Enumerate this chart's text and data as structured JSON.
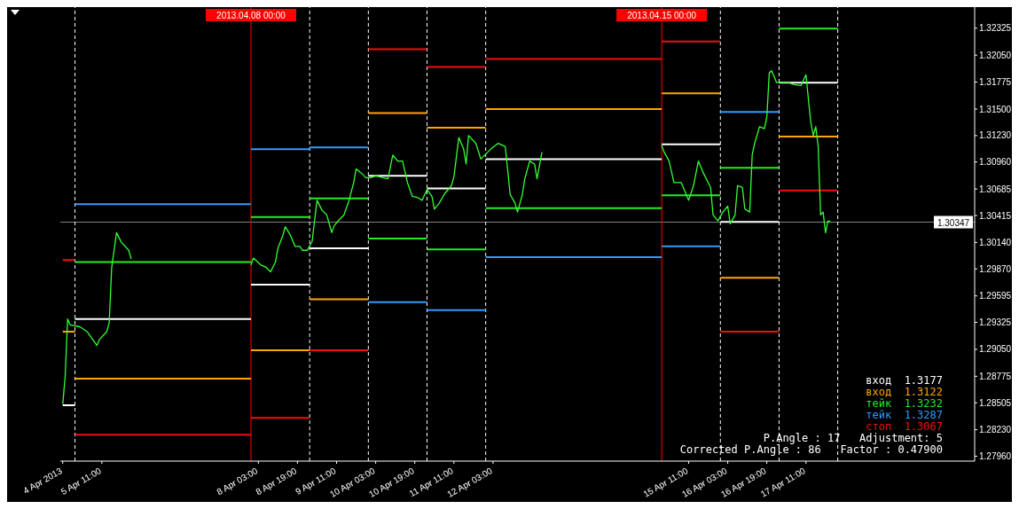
{
  "chart_data": {
    "type": "line",
    "xlim": [
      "2013-04-04T18:00",
      "2013-04-20T08:00"
    ],
    "xticks": [
      {
        "value": "2013-04-04T19:00",
        "label": "4 Apr 2013"
      },
      {
        "value": "2013-04-05T11:00",
        "label": "5 Apr 11:00"
      },
      {
        "value": "2013-04-08T03:00",
        "label": "8 Apr 03:00"
      },
      {
        "value": "2013-04-08T19:00",
        "label": "8 Apr 19:00"
      },
      {
        "value": "2013-04-09T11:00",
        "label": "9 Apr 11:00"
      },
      {
        "value": "2013-04-10T03:00",
        "label": "10 Apr 03:00"
      },
      {
        "value": "2013-04-10T19:00",
        "label": "10 Apr 19:00"
      },
      {
        "value": "2013-04-11T11:00",
        "label": "11 Apr 11:00"
      },
      {
        "value": "2013-04-12T03:00",
        "label": "12 Apr 03:00"
      },
      {
        "value": "2013-04-15T11:00",
        "label": "15 Apr 11:00"
      },
      {
        "value": "2013-04-16T03:00",
        "label": "16 Apr 03:00"
      },
      {
        "value": "2013-04-16T19:00",
        "label": "16 Apr 19:00"
      },
      {
        "value": "2013-04-17T11:00",
        "label": "17 Apr 11:00"
      }
    ],
    "ylim": [
      1.2791,
      1.3254
    ],
    "yticks": [
      {
        "value": 1.32325,
        "label": "1.32325"
      },
      {
        "value": 1.3205,
        "label": "1.32050"
      },
      {
        "value": 1.31775,
        "label": "1.31775"
      },
      {
        "value": 1.315,
        "label": "1.31500"
      },
      {
        "value": 1.3123,
        "label": "1.31230"
      },
      {
        "value": 1.3096,
        "label": "1.30960"
      },
      {
        "value": 1.30685,
        "label": "1.30685"
      },
      {
        "value": 1.30415,
        "label": "1.30415"
      },
      {
        "value": 1.3014,
        "label": "1.30140"
      },
      {
        "value": 1.2987,
        "label": "1.29870"
      },
      {
        "value": 1.29595,
        "label": "1.29595"
      },
      {
        "value": 1.29325,
        "label": "1.29325"
      },
      {
        "value": 1.2905,
        "label": "1.29050"
      },
      {
        "value": 1.28775,
        "label": "1.28775"
      },
      {
        "value": 1.28505,
        "label": "1.28505"
      },
      {
        "value": 1.2823,
        "label": "1.28230"
      },
      {
        "value": 1.2796,
        "label": "1.27960"
      }
    ],
    "grid": false,
    "marker": "none",
    "line_style": "solid",
    "series": [
      {
        "type": "line",
        "color": "#33ff33",
        "x": [
          "2013-04-04T19:00",
          "2013-04-04T20:00",
          "2013-04-04T21:00",
          "2013-04-04T22:00",
          "2013-04-05T02:00",
          "2013-04-05T05:00",
          "2013-04-05T09:00",
          "2013-04-05T10:00",
          "2013-04-05T13:00",
          "2013-04-05T14:00",
          "2013-04-05T15:00",
          "2013-04-05T16:00",
          "2013-04-05T17:00",
          "2013-04-05T19:00",
          "2013-04-05T22:00",
          "2013-04-05T23:00",
          "2013-04-06T12:00",
          "2013-04-08T00:00",
          "2013-04-08T01:00",
          "2013-04-08T04:00",
          "2013-04-08T06:00",
          "2013-04-08T08:00",
          "2013-04-08T10:00",
          "2013-04-08T11:00",
          "2013-04-08T13:00",
          "2013-04-08T14:00",
          "2013-04-08T16:00",
          "2013-04-08T18:00",
          "2013-04-08T20:00",
          "2013-04-08T21:00",
          "2013-04-08T23:00",
          "2013-04-09T01:00",
          "2013-04-09T02:00",
          "2013-04-09T03:00",
          "2013-04-09T05:00",
          "2013-04-09T07:00",
          "2013-04-09T09:00",
          "2013-04-09T10:00",
          "2013-04-09T12:00",
          "2013-04-09T14:00",
          "2013-04-09T16:00",
          "2013-04-09T18:00",
          "2013-04-09T19:00",
          "2013-04-09T21:00",
          "2013-04-09T23:00",
          "2013-04-10T01:00",
          "2013-04-10T03:00",
          "2013-04-10T06:00",
          "2013-04-10T08:00",
          "2013-04-10T10:00",
          "2013-04-10T12:00",
          "2013-04-10T14:00",
          "2013-04-10T16:00",
          "2013-04-10T18:00",
          "2013-04-10T20:00",
          "2013-04-10T22:00",
          "2013-04-11T00:00",
          "2013-04-11T02:00",
          "2013-04-11T03:00",
          "2013-04-11T05:00",
          "2013-04-11T07:00",
          "2013-04-11T10:00",
          "2013-04-11T11:00",
          "2013-04-11T13:00",
          "2013-04-11T15:00",
          "2013-04-11T16:00",
          "2013-04-11T17:00",
          "2013-04-11T20:00",
          "2013-04-11T22:00",
          "2013-04-12T02:00",
          "2013-04-12T05:00",
          "2013-04-12T08:00",
          "2013-04-12T10:00",
          "2013-04-12T12:00",
          "2013-04-12T13:00",
          "2013-04-12T15:00",
          "2013-04-12T16:00",
          "2013-04-12T18:00",
          "2013-04-12T20:00",
          "2013-04-12T21:00",
          "2013-04-12T23:00",
          "2013-04-13T12:00",
          "2013-04-15T00:00",
          "2013-04-15T01:00",
          "2013-04-15T03:00",
          "2013-04-15T05:00",
          "2013-04-15T08:00",
          "2013-04-15T11:00",
          "2013-04-15T13:00",
          "2013-04-15T15:00",
          "2013-04-15T17:00",
          "2013-04-15T20:00",
          "2013-04-15T21:00",
          "2013-04-15T23:00",
          "2013-04-16T01:00",
          "2013-04-16T03:00",
          "2013-04-16T04:00",
          "2013-04-16T06:00",
          "2013-04-16T07:00",
          "2013-04-16T09:00",
          "2013-04-16T10:00",
          "2013-04-16T12:00",
          "2013-04-16T13:00",
          "2013-04-16T14:00",
          "2013-04-16T16:00",
          "2013-04-16T18:00",
          "2013-04-16T19:00",
          "2013-04-16T20:00",
          "2013-04-16T21:00",
          "2013-04-16T23:00",
          "2013-04-17T02:00",
          "2013-04-17T04:00",
          "2013-04-17T06:00",
          "2013-04-17T09:00",
          "2013-04-17T11:00",
          "2013-04-17T12:00",
          "2013-04-17T13:00",
          "2013-04-17T14:00",
          "2013-04-17T15:00",
          "2013-04-17T16:00",
          "2013-04-17T17:00",
          "2013-04-17T18:00",
          "2013-04-17T19:00",
          "2013-04-17T20:00",
          "2013-04-17T21:00"
        ],
        "values": [
          1.2849,
          1.2878,
          1.2936,
          1.293,
          1.2928,
          1.2923,
          1.2909,
          1.2915,
          1.2923,
          1.2932,
          1.2988,
          1.3006,
          1.3024,
          1.3014,
          1.3006,
          1.2997,
          null,
          1.2991,
          1.2998,
          1.2991,
          1.2989,
          1.2984,
          1.2994,
          1.3008,
          1.3021,
          1.303,
          1.3022,
          1.301,
          1.301,
          1.3006,
          1.3006,
          1.3015,
          1.3036,
          1.3057,
          1.3047,
          1.3042,
          1.3024,
          1.3031,
          1.3037,
          1.3042,
          1.3056,
          1.3075,
          1.3089,
          1.3085,
          1.308,
          1.308,
          1.3082,
          1.308,
          1.3079,
          1.3103,
          1.3097,
          1.3097,
          1.3075,
          1.3061,
          1.306,
          1.3057,
          1.3068,
          1.3061,
          1.3048,
          1.3054,
          1.3063,
          1.3072,
          1.3081,
          1.3121,
          1.3109,
          1.3094,
          1.3123,
          1.3115,
          1.3099,
          1.3109,
          1.3115,
          1.3112,
          1.3063,
          1.3054,
          1.3045,
          1.3063,
          1.3079,
          1.3097,
          1.3094,
          1.3079,
          1.3106,
          null,
          1.3113,
          1.3106,
          1.3097,
          1.3075,
          1.3075,
          1.3057,
          1.3072,
          1.3097,
          1.3085,
          1.307,
          1.3042,
          1.3036,
          1.3045,
          1.3051,
          1.3033,
          1.3042,
          1.3072,
          1.307,
          1.3048,
          1.3045,
          1.3103,
          1.3115,
          1.3132,
          1.313,
          1.3142,
          1.3187,
          1.3189,
          1.3177,
          1.3177,
          1.3177,
          1.3175,
          1.3174,
          1.3185,
          1.316,
          1.3136,
          1.3123,
          1.3132,
          1.3112,
          1.3042,
          1.3045,
          1.3024,
          1.3036,
          1.3035
        ]
      },
      {
        "type": "line",
        "color": "#ffffff",
        "x": [
          "2013-04-04T19:00",
          "2013-04-05T00:00",
          null,
          "2013-04-05T00:00",
          "2013-04-08T00:00",
          null,
          "2013-04-08T00:00",
          "2013-04-09T00:00",
          null,
          "2013-04-09T00:00",
          "2013-04-10T00:00",
          null,
          "2013-04-10T00:00",
          "2013-04-11T00:00",
          null,
          "2013-04-11T00:00",
          "2013-04-12T00:00",
          null,
          "2013-04-12T00:00",
          "2013-04-15T00:00",
          null,
          "2013-04-15T00:00",
          "2013-04-16T00:00",
          null,
          "2013-04-16T00:00",
          "2013-04-17T00:00",
          null,
          "2013-04-17T00:00",
          "2013-04-18T00:00"
        ],
        "values": [
          1.2848,
          1.2848,
          null,
          1.2936,
          1.2936,
          null,
          1.2971,
          1.2971,
          null,
          1.3008,
          1.3008,
          null,
          1.3082,
          1.3082,
          null,
          1.3069,
          1.3069,
          null,
          1.3099,
          1.3099,
          null,
          1.3114,
          1.3114,
          null,
          1.3035,
          1.3035,
          null,
          1.3177,
          1.3177
        ]
      },
      {
        "type": "line",
        "color": "#ffa500",
        "x": [
          "2013-04-04T19:00",
          "2013-04-05T00:00",
          null,
          "2013-04-05T00:00",
          "2013-04-08T00:00",
          null,
          "2013-04-08T00:00",
          "2013-04-09T00:00",
          null,
          "2013-04-09T00:00",
          "2013-04-10T00:00",
          null,
          "2013-04-10T00:00",
          "2013-04-11T00:00",
          null,
          "2013-04-11T00:00",
          "2013-04-12T00:00",
          null,
          "2013-04-12T00:00",
          "2013-04-15T00:00",
          null,
          "2013-04-15T00:00",
          "2013-04-16T00:00",
          null,
          "2013-04-16T00:00",
          "2013-04-17T00:00",
          null,
          "2013-04-17T00:00",
          "2013-04-18T00:00"
        ],
        "values": [
          1.2923,
          1.2923,
          null,
          1.2875,
          1.2875,
          null,
          1.2904,
          1.2904,
          null,
          1.2956,
          1.2956,
          null,
          1.3146,
          1.3146,
          null,
          1.3131,
          1.3131,
          null,
          1.315,
          1.315,
          null,
          1.3166,
          1.3166,
          null,
          1.2978,
          1.2978,
          null,
          1.3122,
          1.3122
        ]
      },
      {
        "type": "line",
        "color": "#22ee22",
        "x": [
          null,
          null,
          null,
          "2013-04-05T00:00",
          "2013-04-08T00:00",
          null,
          "2013-04-08T00:00",
          "2013-04-09T00:00",
          null,
          "2013-04-09T00:00",
          "2013-04-10T00:00",
          null,
          "2013-04-10T00:00",
          "2013-04-11T00:00",
          null,
          "2013-04-11T00:00",
          "2013-04-12T00:00",
          null,
          "2013-04-12T00:00",
          "2013-04-15T00:00",
          null,
          "2013-04-15T00:00",
          "2013-04-16T00:00",
          null,
          "2013-04-16T00:00",
          "2013-04-17T00:00",
          null,
          "2013-04-17T00:00",
          "2013-04-18T00:00"
        ],
        "values": [
          null,
          null,
          null,
          1.2994,
          1.2994,
          null,
          1.304,
          1.304,
          null,
          1.3059,
          1.3059,
          null,
          1.3018,
          1.3018,
          null,
          1.3007,
          1.3007,
          null,
          1.3049,
          1.3049,
          null,
          1.3062,
          1.3062,
          null,
          1.309,
          1.309,
          null,
          1.3232,
          1.3232
        ]
      },
      {
        "type": "line",
        "color": "#3399ff",
        "x": [
          null,
          null,
          null,
          "2013-04-05T00:00",
          "2013-04-08T00:00",
          null,
          "2013-04-08T00:00",
          "2013-04-09T00:00",
          null,
          "2013-04-09T00:00",
          "2013-04-10T00:00",
          null,
          "2013-04-10T00:00",
          "2013-04-11T00:00",
          null,
          "2013-04-11T00:00",
          "2013-04-12T00:00",
          null,
          "2013-04-12T00:00",
          "2013-04-15T00:00",
          null,
          "2013-04-15T00:00",
          "2013-04-16T00:00",
          null,
          "2013-04-16T00:00",
          "2013-04-17T00:00",
          null,
          null,
          null
        ],
        "values": [
          null,
          null,
          null,
          1.3053,
          1.3053,
          null,
          1.3109,
          1.3109,
          null,
          1.3111,
          1.3111,
          null,
          1.2953,
          1.2953,
          null,
          1.2945,
          1.2945,
          null,
          1.2999,
          1.2999,
          null,
          1.301,
          1.301,
          null,
          1.3147,
          1.3147,
          null,
          null,
          null
        ]
      },
      {
        "type": "line",
        "color": "#ee1111",
        "x": [
          "2013-04-04T19:00",
          "2013-04-05T00:00",
          null,
          "2013-04-05T00:00",
          "2013-04-08T00:00",
          null,
          "2013-04-08T00:00",
          "2013-04-09T00:00",
          null,
          "2013-04-09T00:00",
          "2013-04-10T00:00",
          null,
          "2013-04-10T00:00",
          "2013-04-11T00:00",
          null,
          "2013-04-11T00:00",
          "2013-04-12T00:00",
          null,
          "2013-04-12T00:00",
          "2013-04-15T00:00",
          null,
          "2013-04-15T00:00",
          "2013-04-16T00:00",
          null,
          "2013-04-16T00:00",
          "2013-04-17T00:00",
          null,
          "2013-04-17T00:00",
          "2013-04-18T00:00"
        ],
        "values": [
          1.2996,
          1.2996,
          null,
          1.2818,
          1.2818,
          null,
          1.2835,
          1.2835,
          null,
          1.2904,
          1.2904,
          null,
          1.3211,
          1.3211,
          null,
          1.3193,
          1.3193,
          null,
          1.3201,
          1.3201,
          null,
          1.3219,
          1.3219,
          null,
          1.2923,
          1.2923,
          null,
          1.3067,
          1.3067
        ]
      }
    ],
    "ref_lines": [
      {
        "axis": "y",
        "value": 1.30347,
        "label": "1.30347",
        "color": "#808080",
        "line_style": "solid"
      },
      {
        "axis": "x",
        "value": "2013-04-05T00:00",
        "color": "#ffffff",
        "line_style": "dashed"
      },
      {
        "axis": "x",
        "value": "2013-04-08T00:00",
        "label": "2013.04.08 00:00",
        "color": "#ff0000",
        "line_style": "solid"
      },
      {
        "axis": "x",
        "value": "2013-04-09T00:00",
        "color": "#ffffff",
        "line_style": "dashed"
      },
      {
        "axis": "x",
        "value": "2013-04-10T00:00",
        "color": "#ffffff",
        "line_style": "dashed"
      },
      {
        "axis": "x",
        "value": "2013-04-11T00:00",
        "color": "#ffffff",
        "line_style": "dashed"
      },
      {
        "axis": "x",
        "value": "2013-04-12T00:00",
        "color": "#ffffff",
        "line_style": "dashed"
      },
      {
        "axis": "x",
        "value": "2013-04-15T00:00",
        "label": "2013.04.15 00:00",
        "color": "#ff0000",
        "line_style": "solid"
      },
      {
        "axis": "x",
        "value": "2013-04-16T00:00",
        "color": "#ffffff",
        "line_style": "dashed"
      },
      {
        "axis": "x",
        "value": "2013-04-17T00:00",
        "color": "#ffffff",
        "line_style": "dashed"
      },
      {
        "axis": "x",
        "value": "2013-04-18T00:00",
        "color": "#ffffff",
        "line_style": "dashed"
      }
    ],
    "annotations": [
      "вход  1.3177",
      "вход  1.3122",
      "тейк  1.3232",
      "тейк  1.3287",
      "стоп  1.3067",
      "P.Angle : 17   Adjustment: 5",
      "Corrected P.Angle : 86   Factor : 0.47900"
    ]
  }
}
